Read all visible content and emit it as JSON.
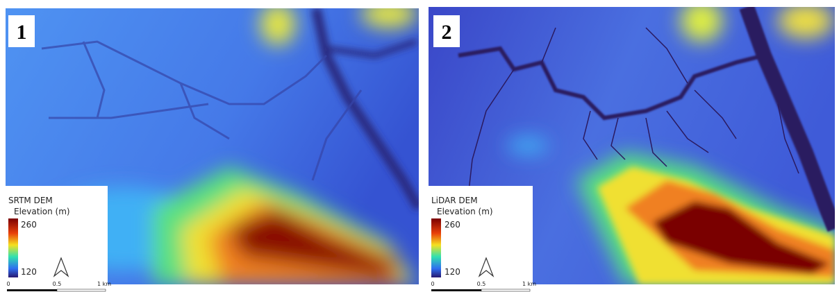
{
  "panels": [
    {
      "label": "1",
      "legend": {
        "title": "SRTM DEM",
        "subtitle": "Elevation (m)",
        "max": 260,
        "min": 120
      },
      "scale": {
        "ticks": [
          0,
          0.5,
          "1 km"
        ]
      }
    },
    {
      "label": "2",
      "legend": {
        "title": "LiDAR DEM",
        "subtitle": "Elevation (m)",
        "max": 260,
        "min": 120
      },
      "scale": {
        "ticks": [
          0,
          0.5,
          "1 km"
        ]
      }
    }
  ]
}
